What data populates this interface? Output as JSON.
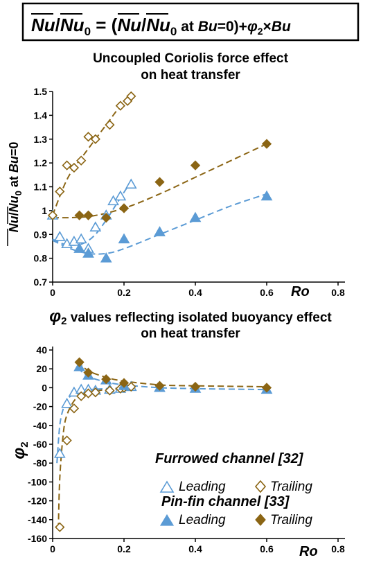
{
  "header": {
    "equation_parts": [
      "Nu",
      "/",
      "Nu",
      "0",
      " = (",
      "Nu",
      "/",
      "Nu",
      "0",
      "  at ",
      "Bu",
      "=0)+",
      "φ",
      "2",
      "×",
      "Bu"
    ]
  },
  "top_title": [
    "Uncoupled Coriolis force effect",
    "on heat transfer"
  ],
  "bottom_title": {
    "phi": "φ",
    "sub": "2",
    "line1_rest": " values reflecting isolated buoyancy effect",
    "line2": "on heat transfer"
  },
  "top_ylabel_parts": [
    "Nu",
    "/",
    "Nu",
    "0",
    "  at ",
    "Bu",
    "=0"
  ],
  "bottom_ylabel": {
    "phi": "φ",
    "sub": "2"
  },
  "x_axis_label": "Ro",
  "legend": {
    "furrowed_title": "Furrowed channel [32]",
    "pinfin_title": "Pin-fin channel [33]",
    "leading": "Leading",
    "trailing": "Trailing"
  },
  "colors": {
    "leading": "#5b9bd5",
    "trailing": "#8b6514"
  },
  "chart_data": [
    {
      "type": "scatter",
      "title": "Uncoupled Coriolis force effect on heat transfer",
      "xlabel": "Ro",
      "ylabel": "Nu/Nu0 at Bu=0",
      "xlim": [
        0,
        0.8
      ],
      "ylim": [
        0.7,
        1.5
      ],
      "xticks": [
        "0",
        "0.2",
        "0.4",
        "0.6",
        "0.8"
      ],
      "yticks": [
        "0.7",
        "0.8",
        "0.9",
        "1",
        "1.1",
        "1.2",
        "1.3",
        "1.4",
        "1.5"
      ],
      "grid": false,
      "series": [
        {
          "name": "Furrowed channel [32] Leading",
          "marker": "open-triangle",
          "color": "#5b9bd5",
          "x": [
            0.0,
            0.02,
            0.04,
            0.06,
            0.08,
            0.1,
            0.12,
            0.15,
            0.17,
            0.19,
            0.22
          ],
          "y": [
            0.98,
            0.89,
            0.86,
            0.87,
            0.88,
            0.84,
            0.93,
            0.98,
            1.04,
            1.06,
            1.11
          ]
        },
        {
          "name": "Furrowed channel [32] Trailing",
          "marker": "open-diamond",
          "color": "#8b6514",
          "x": [
            0.0,
            0.02,
            0.04,
            0.06,
            0.08,
            0.1,
            0.12,
            0.16,
            0.19,
            0.21,
            0.22
          ],
          "y": [
            0.98,
            1.08,
            1.19,
            1.18,
            1.21,
            1.31,
            1.3,
            1.36,
            1.44,
            1.46,
            1.48
          ]
        },
        {
          "name": "Pin-fin channel [33] Leading",
          "marker": "filled-triangle",
          "color": "#5b9bd5",
          "x": [
            0.075,
            0.1,
            0.15,
            0.2,
            0.3,
            0.4,
            0.6
          ],
          "y": [
            0.84,
            0.82,
            0.8,
            0.88,
            0.91,
            0.97,
            1.06
          ]
        },
        {
          "name": "Pin-fin channel [33] Trailing",
          "marker": "filled-diamond",
          "color": "#8b6514",
          "x": [
            0.075,
            0.1,
            0.15,
            0.2,
            0.3,
            0.4,
            0.6
          ],
          "y": [
            0.98,
            0.98,
            0.97,
            1.01,
            1.12,
            1.19,
            1.28
          ]
        }
      ],
      "fits": [
        {
          "series": "Furrowed channel [32] Leading",
          "style": "dashed",
          "color": "#5b9bd5",
          "x": [
            0.0,
            0.03,
            0.06,
            0.09,
            0.12,
            0.15,
            0.18,
            0.21,
            0.22
          ],
          "y": [
            0.88,
            0.86,
            0.855,
            0.865,
            0.9,
            0.96,
            1.03,
            1.1,
            1.12
          ]
        },
        {
          "series": "Furrowed channel [32] Trailing",
          "style": "dashed",
          "color": "#8b6514",
          "x": [
            0.0,
            0.02,
            0.04,
            0.06,
            0.08,
            0.1,
            0.12,
            0.14,
            0.16,
            0.18,
            0.2,
            0.22
          ],
          "y": [
            0.98,
            1.06,
            1.13,
            1.18,
            1.22,
            1.26,
            1.3,
            1.34,
            1.38,
            1.42,
            1.45,
            1.49
          ]
        },
        {
          "series": "Pin-fin channel [33] Leading",
          "style": "dashed",
          "color": "#5b9bd5",
          "x": [
            0.0,
            0.05,
            0.1,
            0.15,
            0.2,
            0.3,
            0.4,
            0.5,
            0.6
          ],
          "y": [
            0.875,
            0.84,
            0.82,
            0.82,
            0.84,
            0.9,
            0.96,
            1.02,
            1.07
          ]
        },
        {
          "series": "Pin-fin channel [33] Trailing",
          "style": "dashed",
          "color": "#8b6514",
          "x": [
            0.0,
            0.1,
            0.2,
            0.3,
            0.4,
            0.5,
            0.6
          ],
          "y": [
            0.97,
            0.975,
            1.01,
            1.07,
            1.14,
            1.21,
            1.28
          ]
        }
      ]
    },
    {
      "type": "scatter",
      "title": "φ2 values reflecting isolated buoyancy effect on heat transfer",
      "xlabel": "Ro",
      "ylabel": "φ2",
      "xlim": [
        0,
        0.8
      ],
      "ylim": [
        -160,
        40
      ],
      "xticks": [
        "0",
        "0.2",
        "0.4",
        "0.6",
        "0.8"
      ],
      "yticks": [
        "-160",
        "-140",
        "-120",
        "-100",
        "-80",
        "-60",
        "-40",
        "-20",
        "0",
        "20",
        "40"
      ],
      "grid": false,
      "legend_position": "bottom-right",
      "series": [
        {
          "name": "Furrowed channel [32] Leading",
          "marker": "open-triangle",
          "color": "#5b9bd5",
          "x": [
            0.02,
            0.04,
            0.06,
            0.08,
            0.1,
            0.12,
            0.16,
            0.19,
            0.2,
            0.22
          ],
          "y": [
            -70,
            -17,
            -5,
            -2,
            -2,
            -3,
            -2,
            -1,
            1,
            1
          ]
        },
        {
          "name": "Furrowed channel [32] Trailing",
          "marker": "open-diamond",
          "color": "#8b6514",
          "x": [
            0.02,
            0.04,
            0.06,
            0.08,
            0.1,
            0.12,
            0.16,
            0.19,
            0.2,
            0.22
          ],
          "y": [
            -148,
            -56,
            -22,
            -9,
            -6,
            -5,
            -3,
            -1,
            0,
            1
          ]
        },
        {
          "name": "Pin-fin channel [33] Leading",
          "marker": "filled-triangle",
          "color": "#5b9bd5",
          "x": [
            0.075,
            0.1,
            0.15,
            0.2,
            0.3,
            0.4,
            0.6
          ],
          "y": [
            22,
            13,
            8,
            2,
            0,
            -1,
            -2
          ]
        },
        {
          "name": "Pin-fin channel [33] Trailing",
          "marker": "filled-diamond",
          "color": "#8b6514",
          "x": [
            0.075,
            0.1,
            0.15,
            0.2,
            0.3,
            0.4,
            0.6
          ],
          "y": [
            27,
            16,
            9,
            5,
            2,
            1,
            0
          ]
        }
      ],
      "fits": [
        {
          "series": "Furrowed channel [32] Leading",
          "style": "dashed",
          "color": "#5b9bd5",
          "x": [
            0.012,
            0.02,
            0.03,
            0.04,
            0.06,
            0.08,
            0.1,
            0.15,
            0.2,
            0.22
          ],
          "y": [
            -80,
            -40,
            -22,
            -13,
            -6,
            -3,
            -2,
            -1,
            0,
            0
          ]
        },
        {
          "series": "Furrowed channel [32] Trailing",
          "style": "dashed",
          "color": "#8b6514",
          "x": [
            0.016,
            0.02,
            0.03,
            0.04,
            0.06,
            0.08,
            0.1,
            0.15,
            0.2,
            0.22
          ],
          "y": [
            -150,
            -96,
            -48,
            -29,
            -14,
            -8,
            -5,
            -2,
            -1,
            0
          ]
        },
        {
          "series": "Pin-fin channel [33] Leading",
          "style": "dashed",
          "color": "#5b9bd5",
          "x": [
            0.07,
            0.1,
            0.15,
            0.2,
            0.3,
            0.4,
            0.6
          ],
          "y": [
            21,
            12,
            6,
            3,
            0,
            -1,
            -2
          ]
        },
        {
          "series": "Pin-fin channel [33] Trailing",
          "style": "dashed",
          "color": "#8b6514",
          "x": [
            0.07,
            0.1,
            0.15,
            0.2,
            0.3,
            0.4,
            0.6
          ],
          "y": [
            28,
            18,
            11,
            7,
            3,
            2,
            1
          ]
        }
      ]
    }
  ]
}
